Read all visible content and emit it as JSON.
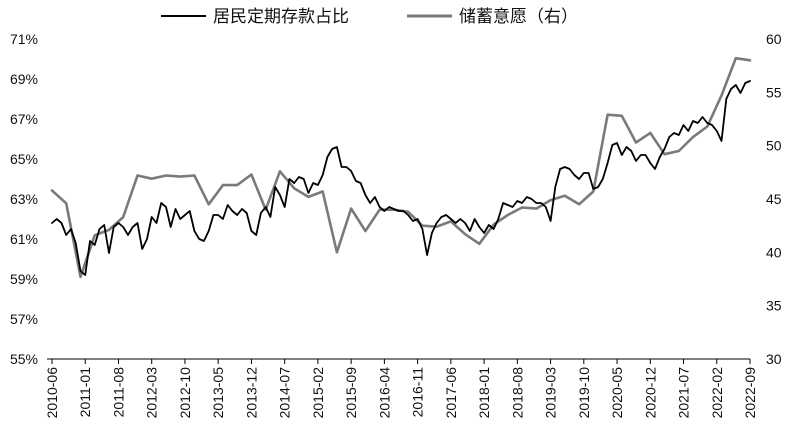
{
  "chart_data": {
    "type": "line",
    "title": "",
    "xlabel": "",
    "ylabel": "",
    "legend": {
      "placement": "top-center",
      "entries": [
        "居民定期存款占比",
        "储蓄意愿（右）"
      ]
    },
    "grid": false,
    "x_tick_labels": [
      "2010-06",
      "2011-01",
      "2011-08",
      "2012-03",
      "2012-10",
      "2013-05",
      "2013-12",
      "2014-07",
      "2015-02",
      "2015-09",
      "2016-04",
      "2016-11",
      "2017-06",
      "2018-01",
      "2018-08",
      "2019-03",
      "2019-10",
      "2020-05",
      "2020-12",
      "2021-07",
      "2022-02",
      "2022-09"
    ],
    "y_left": {
      "ticks": [
        "55%",
        "57%",
        "59%",
        "61%",
        "63%",
        "65%",
        "67%",
        "69%",
        "71%"
      ],
      "range": [
        55,
        71
      ],
      "unit": "%"
    },
    "y_right": {
      "ticks": [
        "30",
        "35",
        "40",
        "45",
        "50",
        "55",
        "60"
      ],
      "range": [
        30,
        60
      ]
    },
    "x_range": [
      "2010-06",
      "2022-09"
    ],
    "series": [
      {
        "name": "居民定期存款占比",
        "axis": "left",
        "color": "#000000",
        "points": [
          [
            "2010-06",
            61.8
          ],
          [
            "2010-07",
            62.0
          ],
          [
            "2010-08",
            61.8
          ],
          [
            "2010-09",
            61.2
          ],
          [
            "2010-10",
            61.5
          ],
          [
            "2010-11",
            60.8
          ],
          [
            "2010-12",
            59.4
          ],
          [
            "2011-01",
            59.2
          ],
          [
            "2011-02",
            60.9
          ],
          [
            "2011-03",
            60.7
          ],
          [
            "2011-04",
            61.5
          ],
          [
            "2011-05",
            61.7
          ],
          [
            "2011-06",
            60.3
          ],
          [
            "2011-07",
            61.6
          ],
          [
            "2011-08",
            61.8
          ],
          [
            "2011-09",
            61.6
          ],
          [
            "2011-10",
            61.2
          ],
          [
            "2011-11",
            61.6
          ],
          [
            "2011-12",
            61.8
          ],
          [
            "2012-01",
            60.5
          ],
          [
            "2012-02",
            61.0
          ],
          [
            "2012-03",
            62.1
          ],
          [
            "2012-04",
            61.8
          ],
          [
            "2012-05",
            62.8
          ],
          [
            "2012-06",
            62.6
          ],
          [
            "2012-07",
            61.6
          ],
          [
            "2012-08",
            62.5
          ],
          [
            "2012-09",
            62.0
          ],
          [
            "2012-10",
            62.2
          ],
          [
            "2012-11",
            62.4
          ],
          [
            "2012-12",
            61.4
          ],
          [
            "2013-01",
            61.0
          ],
          [
            "2013-02",
            60.9
          ],
          [
            "2013-03",
            61.4
          ],
          [
            "2013-04",
            62.2
          ],
          [
            "2013-05",
            62.2
          ],
          [
            "2013-06",
            62.0
          ],
          [
            "2013-07",
            62.7
          ],
          [
            "2013-08",
            62.4
          ],
          [
            "2013-09",
            62.2
          ],
          [
            "2013-10",
            62.5
          ],
          [
            "2013-11",
            62.3
          ],
          [
            "2013-12",
            61.4
          ],
          [
            "2014-01",
            61.2
          ],
          [
            "2014-02",
            62.3
          ],
          [
            "2014-03",
            62.6
          ],
          [
            "2014-04",
            62.1
          ],
          [
            "2014-05",
            63.6
          ],
          [
            "2014-06",
            63.2
          ],
          [
            "2014-07",
            62.6
          ],
          [
            "2014-08",
            64.0
          ],
          [
            "2014-09",
            63.8
          ],
          [
            "2014-10",
            64.1
          ],
          [
            "2014-11",
            64.0
          ],
          [
            "2014-12",
            63.3
          ],
          [
            "2015-01",
            63.8
          ],
          [
            "2015-02",
            63.7
          ],
          [
            "2015-03",
            64.2
          ],
          [
            "2015-04",
            65.1
          ],
          [
            "2015-05",
            65.5
          ],
          [
            "2015-06",
            65.6
          ],
          [
            "2015-07",
            64.6
          ],
          [
            "2015-08",
            64.6
          ],
          [
            "2015-09",
            64.4
          ],
          [
            "2015-10",
            63.9
          ],
          [
            "2015-11",
            63.8
          ],
          [
            "2015-12",
            63.2
          ],
          [
            "2016-01",
            62.8
          ],
          [
            "2016-02",
            63.1
          ],
          [
            "2016-03",
            62.6
          ],
          [
            "2016-04",
            62.4
          ],
          [
            "2016-05",
            62.6
          ],
          [
            "2016-06",
            62.5
          ],
          [
            "2016-07",
            62.4
          ],
          [
            "2016-08",
            62.4
          ],
          [
            "2016-09",
            62.2
          ],
          [
            "2016-10",
            61.9
          ],
          [
            "2016-11",
            62.0
          ],
          [
            "2016-12",
            61.5
          ],
          [
            "2017-01",
            60.2
          ],
          [
            "2017-02",
            61.3
          ],
          [
            "2017-03",
            61.8
          ],
          [
            "2017-04",
            62.1
          ],
          [
            "2017-05",
            62.2
          ],
          [
            "2017-06",
            62.0
          ],
          [
            "2017-07",
            61.8
          ],
          [
            "2017-08",
            62.0
          ],
          [
            "2017-09",
            61.8
          ],
          [
            "2017-10",
            61.4
          ],
          [
            "2017-11",
            62.0
          ],
          [
            "2017-12",
            61.6
          ],
          [
            "2018-01",
            61.3
          ],
          [
            "2018-02",
            61.7
          ],
          [
            "2018-03",
            61.5
          ],
          [
            "2018-04",
            62.0
          ],
          [
            "2018-05",
            62.8
          ],
          [
            "2018-06",
            62.7
          ],
          [
            "2018-07",
            62.6
          ],
          [
            "2018-08",
            62.9
          ],
          [
            "2018-09",
            62.8
          ],
          [
            "2018-10",
            63.1
          ],
          [
            "2018-11",
            63.0
          ],
          [
            "2018-12",
            62.8
          ],
          [
            "2019-01",
            62.8
          ],
          [
            "2019-02",
            62.6
          ],
          [
            "2019-03",
            61.9
          ],
          [
            "2019-04",
            63.6
          ],
          [
            "2019-05",
            64.5
          ],
          [
            "2019-06",
            64.6
          ],
          [
            "2019-07",
            64.5
          ],
          [
            "2019-08",
            64.2
          ],
          [
            "2019-09",
            64.0
          ],
          [
            "2019-10",
            64.3
          ],
          [
            "2019-11",
            64.3
          ],
          [
            "2019-12",
            63.5
          ],
          [
            "2020-01",
            63.6
          ],
          [
            "2020-02",
            64.0
          ],
          [
            "2020-03",
            64.8
          ],
          [
            "2020-04",
            65.7
          ],
          [
            "2020-05",
            65.8
          ],
          [
            "2020-06",
            65.2
          ],
          [
            "2020-07",
            65.6
          ],
          [
            "2020-08",
            65.4
          ],
          [
            "2020-09",
            64.9
          ],
          [
            "2020-10",
            65.2
          ],
          [
            "2020-11",
            65.2
          ],
          [
            "2020-12",
            64.8
          ],
          [
            "2021-01",
            64.5
          ],
          [
            "2021-02",
            65.1
          ],
          [
            "2021-03",
            65.5
          ],
          [
            "2021-04",
            66.1
          ],
          [
            "2021-05",
            66.3
          ],
          [
            "2021-06",
            66.2
          ],
          [
            "2021-07",
            66.7
          ],
          [
            "2021-08",
            66.4
          ],
          [
            "2021-09",
            66.9
          ],
          [
            "2021-10",
            66.8
          ],
          [
            "2021-11",
            67.1
          ],
          [
            "2021-12",
            66.8
          ],
          [
            "2022-01",
            66.7
          ],
          [
            "2022-02",
            66.4
          ],
          [
            "2022-03",
            65.9
          ],
          [
            "2022-04",
            68.0
          ],
          [
            "2022-05",
            68.5
          ],
          [
            "2022-06",
            68.7
          ],
          [
            "2022-07",
            68.3
          ],
          [
            "2022-08",
            68.8
          ],
          [
            "2022-09",
            68.9
          ]
        ]
      },
      {
        "name": "储蓄意愿（右）",
        "axis": "right",
        "color": "#7a7a7a",
        "points": [
          [
            "2010-06",
            45.8
          ],
          [
            "2010-09",
            44.6
          ],
          [
            "2010-12",
            37.7
          ],
          [
            "2011-03",
            41.6
          ],
          [
            "2011-06",
            42.1
          ],
          [
            "2011-09",
            43.3
          ],
          [
            "2011-12",
            47.2
          ],
          [
            "2012-03",
            46.9
          ],
          [
            "2012-06",
            47.2
          ],
          [
            "2012-09",
            47.1
          ],
          [
            "2012-12",
            47.2
          ],
          [
            "2013-03",
            44.5
          ],
          [
            "2013-06",
            46.3
          ],
          [
            "2013-09",
            46.3
          ],
          [
            "2013-12",
            47.3
          ],
          [
            "2014-03",
            44.0
          ],
          [
            "2014-06",
            47.6
          ],
          [
            "2014-09",
            46.0
          ],
          [
            "2014-12",
            45.2
          ],
          [
            "2015-03",
            45.7
          ],
          [
            "2015-06",
            40.0
          ],
          [
            "2015-09",
            44.1
          ],
          [
            "2015-12",
            42.0
          ],
          [
            "2016-03",
            44.0
          ],
          [
            "2016-06",
            44.0
          ],
          [
            "2016-09",
            43.8
          ],
          [
            "2016-12",
            42.5
          ],
          [
            "2017-03",
            42.4
          ],
          [
            "2017-06",
            42.9
          ],
          [
            "2017-09",
            41.7
          ],
          [
            "2017-12",
            40.8
          ],
          [
            "2018-03",
            42.6
          ],
          [
            "2018-06",
            43.5
          ],
          [
            "2018-09",
            44.2
          ],
          [
            "2018-12",
            44.1
          ],
          [
            "2019-03",
            44.9
          ],
          [
            "2019-06",
            45.3
          ],
          [
            "2019-09",
            44.5
          ],
          [
            "2019-12",
            45.7
          ],
          [
            "2020-03",
            52.9
          ],
          [
            "2020-06",
            52.8
          ],
          [
            "2020-09",
            50.3
          ],
          [
            "2020-12",
            51.2
          ],
          [
            "2021-03",
            49.2
          ],
          [
            "2021-06",
            49.5
          ],
          [
            "2021-09",
            50.8
          ],
          [
            "2021-12",
            51.8
          ],
          [
            "2022-03",
            54.7
          ],
          [
            "2022-06",
            58.2
          ],
          [
            "2022-09",
            58.0
          ]
        ]
      }
    ]
  }
}
